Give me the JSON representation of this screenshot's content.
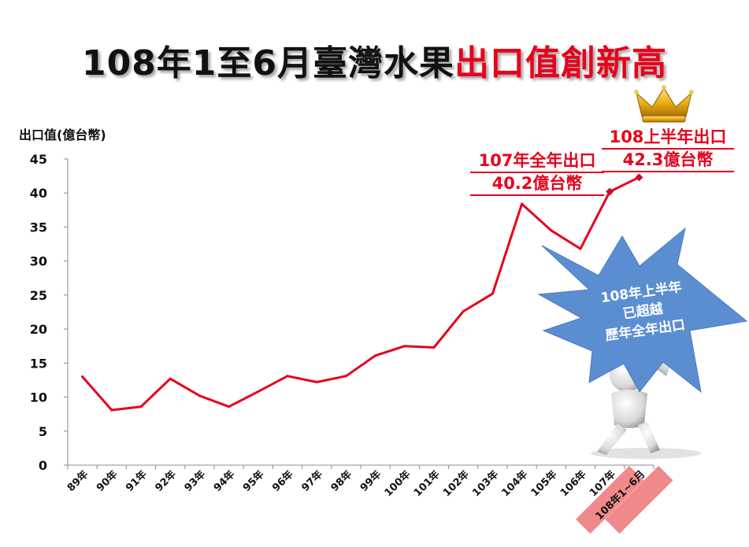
{
  "title": {
    "black": "108年1至6月臺灣水果",
    "red": "出口值創新高"
  },
  "colors": {
    "line": "#e8001c",
    "highlight": "#f08a8a",
    "burst": "#5b8ed1",
    "marker": "#c8102e"
  },
  "annotations": {
    "y107": {
      "line1": "107年全年出口",
      "line2": "40.2億台幣"
    },
    "y108": {
      "line1": "108上半年出口",
      "line2": "42.3億台幣"
    }
  },
  "callout": {
    "line1": "108年上半年",
    "line2": "已超越",
    "line3": "歷年全年出口"
  },
  "icons": [
    "crown-icon",
    "figure-holding-sign-icon"
  ],
  "chart_data": {
    "type": "line",
    "ylabel": "出口值(億台幣)",
    "ylim": [
      0,
      45
    ],
    "yticks": [
      0,
      5,
      10,
      15,
      20,
      25,
      30,
      35,
      40,
      45
    ],
    "categories": [
      "89年",
      "90年",
      "91年",
      "92年",
      "93年",
      "94年",
      "95年",
      "96年",
      "97年",
      "98年",
      "99年",
      "100年",
      "101年",
      "102年",
      "103年",
      "104年",
      "105年",
      "106年",
      "107年",
      "108年1~6月"
    ],
    "highlighted_categories": [
      "107年",
      "108年1~6月"
    ],
    "series": [
      {
        "values": [
          13.0,
          8.1,
          8.6,
          12.7,
          10.2,
          8.6,
          10.8,
          13.1,
          12.2,
          13.1,
          16.1,
          17.5,
          17.3,
          22.6,
          25.2,
          38.4,
          34.5,
          31.8,
          40.2,
          42.3
        ]
      }
    ],
    "markers_on": [
      "107年",
      "108年1~6月"
    ],
    "grid": false
  }
}
